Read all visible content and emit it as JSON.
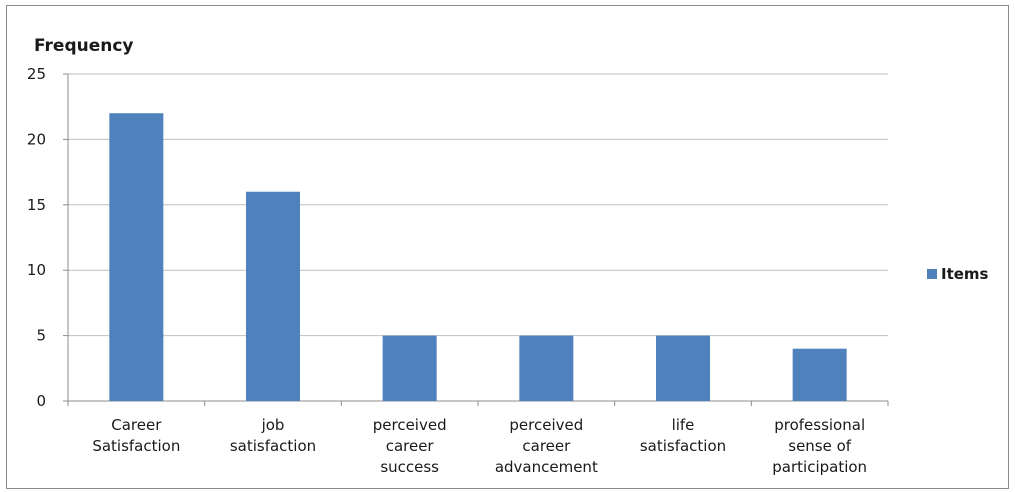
{
  "chart_data": {
    "type": "bar",
    "title": "",
    "xlabel": "",
    "ylabel": "Frequency",
    "ylim": [
      0,
      25
    ],
    "yticks": [
      0,
      5,
      10,
      15,
      20,
      25
    ],
    "grid": true,
    "legend_position": "right",
    "categories": [
      [
        "Career",
        "Satisfaction"
      ],
      [
        "job",
        "satisfaction"
      ],
      [
        "perceived",
        "career",
        "success"
      ],
      [
        "perceived",
        "career",
        "advancement"
      ],
      [
        "life",
        "satisfaction"
      ],
      [
        "professional",
        "sense of",
        "participation"
      ]
    ],
    "series": [
      {
        "name": "Items",
        "color": "#4f81bd",
        "values": [
          22,
          16,
          5,
          5,
          5,
          4
        ]
      }
    ]
  }
}
